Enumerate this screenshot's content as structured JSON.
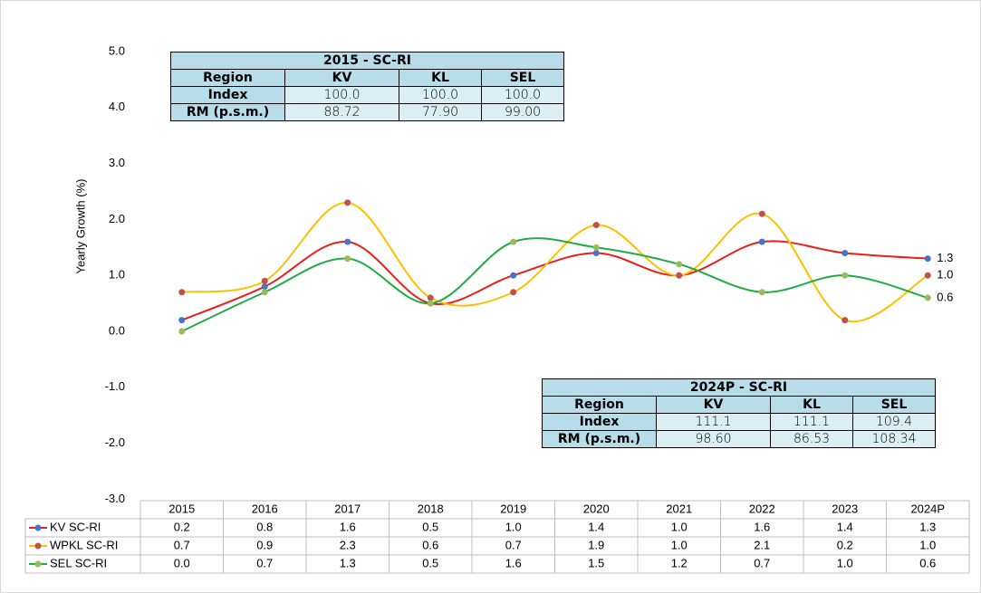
{
  "chart_data": {
    "type": "line",
    "y_label": "Yearly Growth (%)",
    "categories": [
      "2015",
      "2016",
      "2017",
      "2018",
      "2019",
      "2020",
      "2021",
      "2022",
      "2023",
      "2024P"
    ],
    "series": [
      {
        "name": "KV SC-RI",
        "color": "#e8201c",
        "marker_color": "#4a72c4",
        "values": [
          0.2,
          0.8,
          1.6,
          0.5,
          1.0,
          1.4,
          1.0,
          1.6,
          1.4,
          1.3
        ],
        "value_labels": [
          "0.2",
          "0.8",
          "1.6",
          "0.5",
          "1.0",
          "1.4",
          "1.0",
          "1.6",
          "1.4",
          "1.3"
        ]
      },
      {
        "name": "WPKL SC-RI",
        "color": "#ffc000",
        "marker_color": "#c0504d",
        "values": [
          0.7,
          0.9,
          2.3,
          0.6,
          0.7,
          1.9,
          1.0,
          2.1,
          0.2,
          1.0
        ],
        "value_labels": [
          "0.7",
          "0.9",
          "2.3",
          "0.6",
          "0.7",
          "1.9",
          "1.0",
          "2.1",
          "0.2",
          "1.0"
        ]
      },
      {
        "name": "SEL SC-RI",
        "color": "#1fab45",
        "marker_color": "#9bbb59",
        "values": [
          0.0,
          0.7,
          1.3,
          0.5,
          1.6,
          1.5,
          1.2,
          0.7,
          1.0,
          0.6
        ],
        "value_labels": [
          "0.0",
          "0.7",
          "1.3",
          "0.5",
          "1.6",
          "1.5",
          "1.2",
          "0.7",
          "1.0",
          "0.6"
        ]
      }
    ],
    "ylim": [
      -3,
      5
    ],
    "yticks": [
      {
        "value": -3,
        "label": "-3.0"
      },
      {
        "value": -2,
        "label": "-2.0"
      },
      {
        "value": -1,
        "label": "-1.0"
      },
      {
        "value": 0,
        "label": "0.0"
      },
      {
        "value": 1,
        "label": "1.0"
      },
      {
        "value": 2,
        "label": "2.0"
      },
      {
        "value": 3,
        "label": "3.0"
      },
      {
        "value": 4,
        "label": "4.0"
      },
      {
        "value": 5,
        "label": "5.0"
      }
    ],
    "grid": false
  },
  "tables": [
    {
      "title": "2015 - SC-RI",
      "header": [
        "Region",
        "KV",
        "KL",
        "SEL"
      ],
      "rows": [
        [
          "Index",
          "100.0",
          "100.0",
          "100.0"
        ],
        [
          "RM (p.s.m.)",
          "88.72",
          "77.90",
          "99.00"
        ]
      ]
    },
    {
      "title": "2024P - SC-RI",
      "header": [
        "Region",
        "KV",
        "KL",
        "SEL"
      ],
      "rows": [
        [
          "Index",
          "111.1",
          "111.1",
          "109.4"
        ],
        [
          "RM (p.s.m.)",
          "98.60",
          "86.53",
          "108.34"
        ]
      ]
    }
  ]
}
